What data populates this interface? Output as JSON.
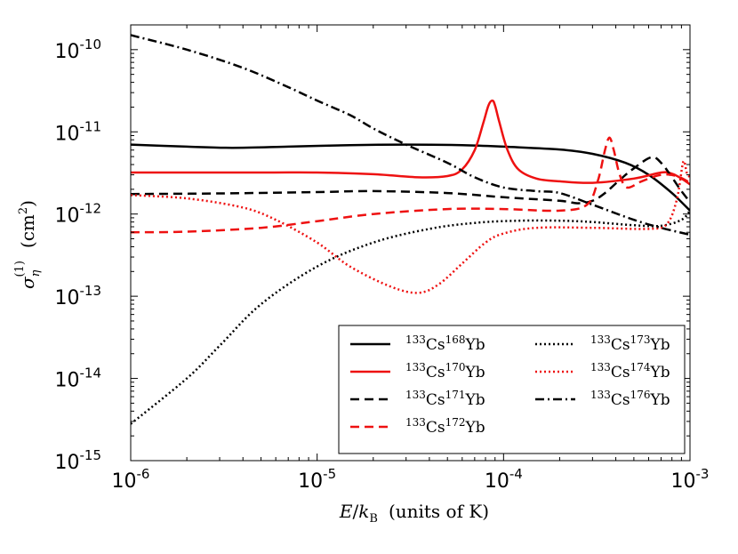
{
  "chart_data": {
    "type": "line",
    "xscale": "log",
    "yscale": "log",
    "xlim": [
      1e-06,
      0.001
    ],
    "ylim": [
      1e-15,
      2e-10
    ],
    "x_ticks": [
      {
        "base": "10",
        "exp": "-6"
      },
      {
        "base": "10",
        "exp": "-5"
      },
      {
        "base": "10",
        "exp": "-4"
      },
      {
        "base": "10",
        "exp": "-3"
      }
    ],
    "y_ticks": [
      {
        "base": "10",
        "exp": "-15"
      },
      {
        "base": "10",
        "exp": "-14"
      },
      {
        "base": "10",
        "exp": "-13"
      },
      {
        "base": "10",
        "exp": "-12"
      },
      {
        "base": "10",
        "exp": "-11"
      },
      {
        "base": "10",
        "exp": "-10"
      }
    ],
    "xlabel": {
      "E": "E",
      "slash": "/",
      "k": "k",
      "B": "B",
      "units": "(units of K)"
    },
    "ylabel": {
      "sigma": "σ",
      "eta": "η",
      "sup": "(1)",
      "units": "(cm",
      "units_sup": "2",
      "units_close": ")"
    },
    "legend": {
      "location": "lower-right",
      "ncol": 2
    },
    "series": [
      {
        "name": "133Cs168Yb",
        "label": {
          "mass1": "133",
          "el1": "Cs",
          "mass2": "168",
          "el2": "Yb"
        },
        "color": "#000000",
        "style": "solid",
        "points": [
          [
            1e-06,
            7e-12
          ],
          [
            2e-06,
            6.6e-12
          ],
          [
            3.5e-06,
            6.4e-12
          ],
          [
            7e-06,
            6.6e-12
          ],
          [
            1.5e-05,
            6.9e-12
          ],
          [
            3e-05,
            7e-12
          ],
          [
            6e-05,
            6.9e-12
          ],
          [
            0.0001,
            6.6e-12
          ],
          [
            0.0002,
            6.1e-12
          ],
          [
            0.0003,
            5.4e-12
          ],
          [
            0.00045,
            4.2e-12
          ],
          [
            0.0006,
            3e-12
          ],
          [
            0.0008,
            1.8e-12
          ],
          [
            0.001,
            1.1e-12
          ]
        ]
      },
      {
        "name": "133Cs170Yb",
        "label": {
          "mass1": "133",
          "el1": "Cs",
          "mass2": "170",
          "el2": "Yb"
        },
        "color": "#ee1111",
        "style": "solid",
        "points": [
          [
            1e-06,
            3.2e-12
          ],
          [
            5e-06,
            3.2e-12
          ],
          [
            1e-05,
            3.2e-12
          ],
          [
            2e-05,
            3.05e-12
          ],
          [
            3.5e-05,
            2.8e-12
          ],
          [
            5e-05,
            2.9e-12
          ],
          [
            6e-05,
            3.5e-12
          ],
          [
            7e-05,
            6e-12
          ],
          [
            7.8e-05,
            1.3e-11
          ],
          [
            8.3e-05,
            2.1e-11
          ],
          [
            8.7e-05,
            2.4e-11
          ],
          [
            9e-05,
            2.1e-11
          ],
          [
            9.5e-05,
            1.3e-11
          ],
          [
            0.000105,
            6e-12
          ],
          [
            0.00012,
            3.5e-12
          ],
          [
            0.00015,
            2.7e-12
          ],
          [
            0.0002,
            2.5e-12
          ],
          [
            0.0003,
            2.4e-12
          ],
          [
            0.0005,
            2.7e-12
          ],
          [
            0.0007,
            3.2e-12
          ],
          [
            0.0008,
            3.1e-12
          ],
          [
            0.0009,
            2.7e-12
          ],
          [
            0.001,
            2.3e-12
          ]
        ]
      },
      {
        "name": "133Cs171Yb",
        "label": {
          "mass1": "133",
          "el1": "Cs",
          "mass2": "171",
          "el2": "Yb"
        },
        "color": "#000000",
        "style": "dashed",
        "points": [
          [
            1e-06,
            1.75e-12
          ],
          [
            3e-06,
            1.78e-12
          ],
          [
            1e-05,
            1.85e-12
          ],
          [
            2e-05,
            1.9e-12
          ],
          [
            5e-05,
            1.8e-12
          ],
          [
            0.0001,
            1.6e-12
          ],
          [
            0.0002,
            1.45e-12
          ],
          [
            0.00025,
            1.35e-12
          ],
          [
            0.0003,
            1.45e-12
          ],
          [
            0.00035,
            1.8e-12
          ],
          [
            0.00042,
            2.6e-12
          ],
          [
            0.0005,
            3.6e-12
          ],
          [
            0.00062,
            4.9e-12
          ],
          [
            0.0007,
            4.2e-12
          ],
          [
            0.0008,
            2.8e-12
          ],
          [
            0.0009,
            1.9e-12
          ],
          [
            0.001,
            1.4e-12
          ]
        ]
      },
      {
        "name": "133Cs172Yb",
        "label": {
          "mass1": "133",
          "el1": "Cs",
          "mass2": "172",
          "el2": "Yb"
        },
        "color": "#ee1111",
        "style": "dashed",
        "points": [
          [
            1e-06,
            6e-13
          ],
          [
            2e-06,
            6.1e-13
          ],
          [
            5e-06,
            6.8e-13
          ],
          [
            1e-05,
            8.2e-13
          ],
          [
            2e-05,
            1e-12
          ],
          [
            5e-05,
            1.15e-12
          ],
          [
            0.0001,
            1.15e-12
          ],
          [
            0.0002,
            1.1e-12
          ],
          [
            0.00028,
            1.3e-12
          ],
          [
            0.00032,
            2.5e-12
          ],
          [
            0.00035,
            6e-12
          ],
          [
            0.00037,
            8.5e-12
          ],
          [
            0.00039,
            6e-12
          ],
          [
            0.00042,
            3e-12
          ],
          [
            0.00046,
            2.1e-12
          ],
          [
            0.00055,
            2.5e-12
          ],
          [
            0.0007,
            3e-12
          ],
          [
            0.00085,
            2.9e-12
          ],
          [
            0.001,
            2.4e-12
          ]
        ]
      },
      {
        "name": "133Cs173Yb",
        "label": {
          "mass1": "133",
          "el1": "Cs",
          "mass2": "173",
          "el2": "Yb"
        },
        "color": "#000000",
        "style": "dotted",
        "points": [
          [
            1e-06,
            2.8e-15
          ],
          [
            2e-06,
            1e-14
          ],
          [
            3e-06,
            2.5e-14
          ],
          [
            5e-06,
            8e-14
          ],
          [
            1e-05,
            2.3e-13
          ],
          [
            2e-05,
            4.5e-13
          ],
          [
            4e-05,
            6.6e-13
          ],
          [
            7e-05,
            7.8e-13
          ],
          [
            0.00012,
            8.3e-13
          ],
          [
            0.0002,
            8.3e-13
          ],
          [
            0.0003,
            8e-13
          ],
          [
            0.0005,
            7.3e-13
          ],
          [
            0.0007,
            7.2e-13
          ],
          [
            0.0009,
            8.5e-13
          ],
          [
            0.001,
            1.1e-12
          ]
        ]
      },
      {
        "name": "133Cs174Yb",
        "label": {
          "mass1": "133",
          "el1": "Cs",
          "mass2": "174",
          "el2": "Yb"
        },
        "color": "#ee1111",
        "style": "dotted",
        "points": [
          [
            1e-06,
            1.7e-12
          ],
          [
            2e-06,
            1.55e-12
          ],
          [
            4e-06,
            1.2e-12
          ],
          [
            6e-06,
            8.5e-13
          ],
          [
            1e-05,
            4.5e-13
          ],
          [
            1.5e-05,
            2.3e-13
          ],
          [
            2.5e-05,
            1.3e-13
          ],
          [
            3.5e-05,
            1.1e-13
          ],
          [
            4.5e-05,
            1.4e-13
          ],
          [
            6e-05,
            2.5e-13
          ],
          [
            8e-05,
            4.5e-13
          ],
          [
            0.0001,
            5.8e-13
          ],
          [
            0.00015,
            6.8e-13
          ],
          [
            0.0003,
            6.8e-13
          ],
          [
            0.0006,
            6.6e-13
          ],
          [
            0.00075,
            7.5e-13
          ],
          [
            0.00085,
            1.5e-12
          ],
          [
            0.00092,
            4.3e-12
          ],
          [
            0.00096,
            3.2e-12
          ],
          [
            0.001,
            2.8e-12
          ]
        ]
      },
      {
        "name": "133Cs176Yb",
        "label": {
          "mass1": "133",
          "el1": "Cs",
          "mass2": "176",
          "el2": "Yb"
        },
        "color": "#000000",
        "style": "dashdot",
        "points": [
          [
            1e-06,
            1.5e-10
          ],
          [
            2e-06,
            1e-10
          ],
          [
            4e-06,
            6e-11
          ],
          [
            7e-06,
            3.5e-11
          ],
          [
            1e-05,
            2.4e-11
          ],
          [
            1.5e-05,
            1.6e-11
          ],
          [
            2e-05,
            1.1e-11
          ],
          [
            3e-05,
            7e-12
          ],
          [
            5e-05,
            4.2e-12
          ],
          [
            7e-05,
            2.8e-12
          ],
          [
            0.0001,
            2.1e-12
          ],
          [
            0.00015,
            1.9e-12
          ],
          [
            0.0002,
            1.8e-12
          ],
          [
            0.0003,
            1.3e-12
          ],
          [
            0.0005,
            8.5e-13
          ],
          [
            0.0007,
            6.8e-13
          ],
          [
            0.001,
            5.6e-13
          ]
        ]
      }
    ]
  }
}
